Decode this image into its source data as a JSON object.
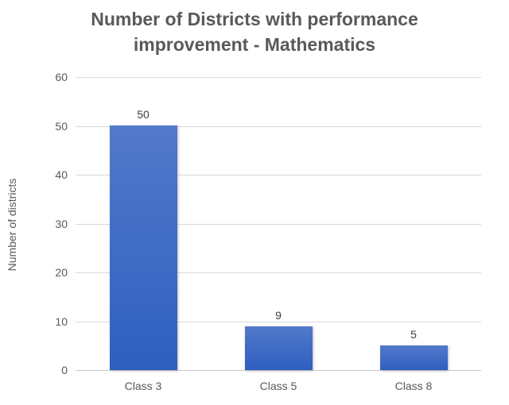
{
  "chart_data": {
    "type": "bar",
    "title": "Number of Districts with performance improvement - Mathematics",
    "title_lines": [
      "Number of Districts with performance",
      "improvement - Mathematics"
    ],
    "categories": [
      "Class 3",
      "Class 5",
      "Class 8"
    ],
    "values": [
      50,
      9,
      5
    ],
    "data_labels": [
      "50",
      "9",
      "5"
    ],
    "xlabel": "",
    "ylabel": "Number of districts",
    "ylim": [
      0,
      60
    ],
    "ytick_step": 10,
    "ytick_labels": [
      "0",
      "10",
      "20",
      "30",
      "40",
      "50",
      "60"
    ],
    "grid": "horizontal-major",
    "legend": "none",
    "colors": {
      "background": "#FFFFFF",
      "bar_gradient_top": "#5279CA",
      "bar_gradient_bottom": "#2E5FC0",
      "gridline": "#D9D9D9",
      "title_text": "#595959",
      "axis_text": "#595959",
      "data_label_text": "#404040"
    }
  }
}
